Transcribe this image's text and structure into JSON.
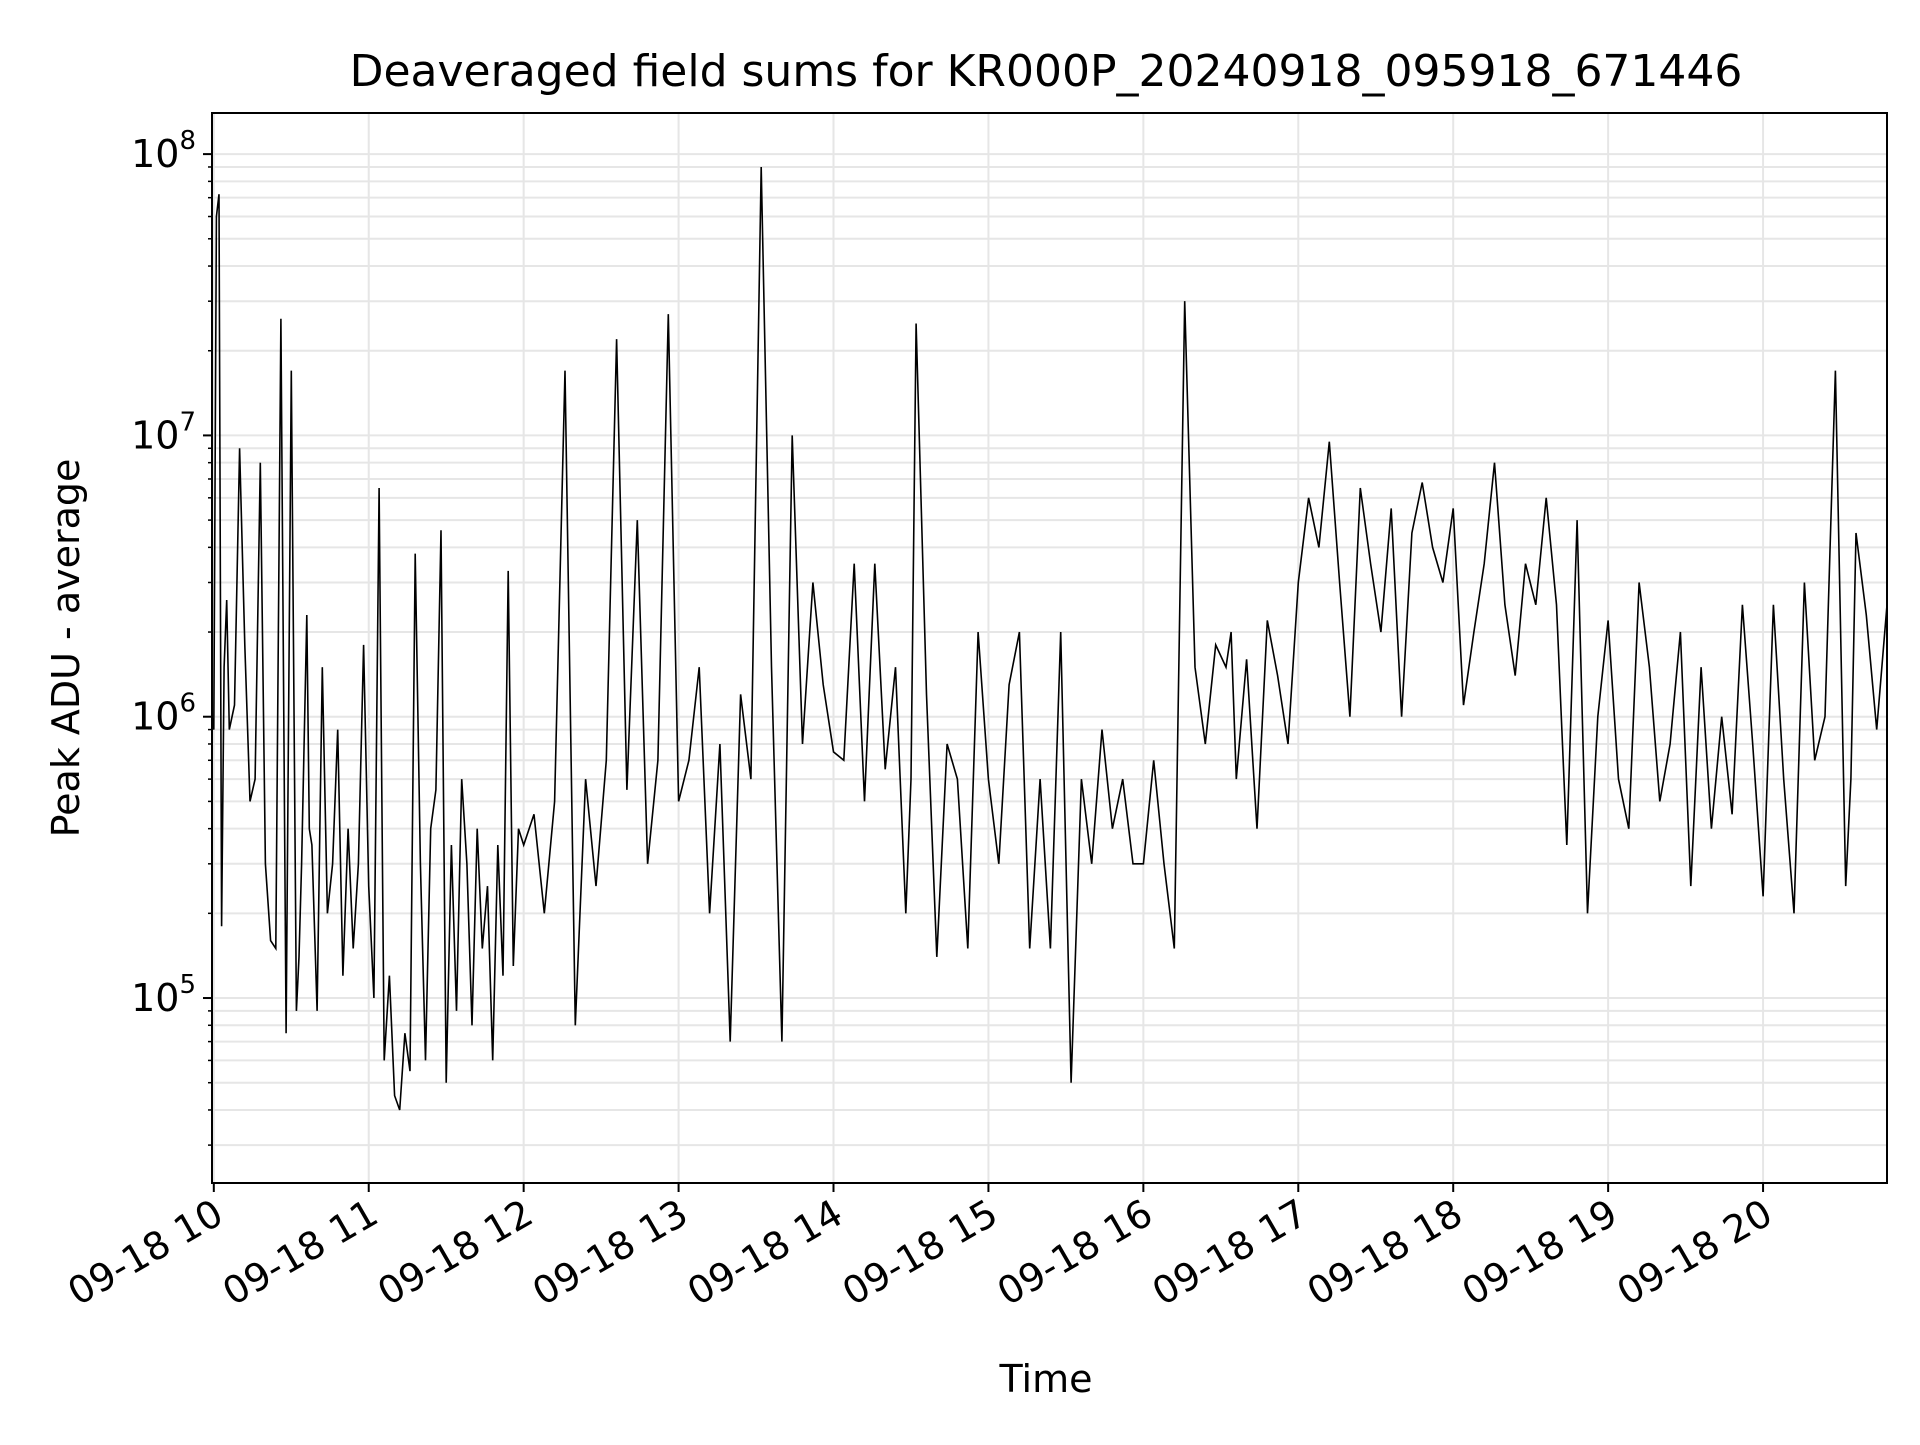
{
  "chart_data": {
    "type": "line",
    "title": "Deaveraged field sums for KR000P_20240918_095918_671446",
    "xlabel": "Time",
    "ylabel": "Peak ADU - average",
    "yscale": "log",
    "ylim": [
      22000,
      140000000
    ],
    "xlim": [
      "2024-09-18 09:59:18",
      "2024-09-18 20:48:00"
    ],
    "grid": true,
    "grid_minor": true,
    "line_color": "#000000",
    "grid_color": "#e6e6e6",
    "x_ticks": [
      {
        "value": "2024-09-18 10:00",
        "label": "09-18 10"
      },
      {
        "value": "2024-09-18 11:00",
        "label": "09-18 11"
      },
      {
        "value": "2024-09-18 12:00",
        "label": "09-18 12"
      },
      {
        "value": "2024-09-18 13:00",
        "label": "09-18 13"
      },
      {
        "value": "2024-09-18 14:00",
        "label": "09-18 14"
      },
      {
        "value": "2024-09-18 15:00",
        "label": "09-18 15"
      },
      {
        "value": "2024-09-18 16:00",
        "label": "09-18 16"
      },
      {
        "value": "2024-09-18 17:00",
        "label": "09-18 17"
      },
      {
        "value": "2024-09-18 18:00",
        "label": "09-18 18"
      },
      {
        "value": "2024-09-18 19:00",
        "label": "09-18 19"
      },
      {
        "value": "2024-09-18 20:00",
        "label": "09-18 20"
      }
    ],
    "y_ticks": [
      {
        "value": 100000,
        "base": "10",
        "exp": "5"
      },
      {
        "value": 1000000,
        "base": "10",
        "exp": "6"
      },
      {
        "value": 10000000,
        "base": "10",
        "exp": "7"
      },
      {
        "value": 100000000,
        "base": "10",
        "exp": "8"
      }
    ],
    "series": [
      {
        "x": [
          "2024-09-18 09:59:18",
          "2024-09-18 10:00",
          "2024-09-18 10:01",
          "2024-09-18 10:02",
          "2024-09-18 10:03",
          "2024-09-18 10:04",
          "2024-09-18 10:05",
          "2024-09-18 10:06",
          "2024-09-18 10:08",
          "2024-09-18 10:10",
          "2024-09-18 10:12",
          "2024-09-18 10:14",
          "2024-09-18 10:16",
          "2024-09-18 10:18",
          "2024-09-18 10:20",
          "2024-09-18 10:22",
          "2024-09-18 10:24",
          "2024-09-18 10:26",
          "2024-09-18 10:28",
          "2024-09-18 10:30",
          "2024-09-18 10:32",
          "2024-09-18 10:33",
          "2024-09-18 10:34",
          "2024-09-18 10:36",
          "2024-09-18 10:37",
          "2024-09-18 10:38",
          "2024-09-18 10:40",
          "2024-09-18 10:42",
          "2024-09-18 10:44",
          "2024-09-18 10:46",
          "2024-09-18 10:48",
          "2024-09-18 10:50",
          "2024-09-18 10:52",
          "2024-09-18 10:54",
          "2024-09-18 10:56",
          "2024-09-18 10:58",
          "2024-09-18 11:00",
          "2024-09-18 11:02",
          "2024-09-18 11:04",
          "2024-09-18 11:06",
          "2024-09-18 11:08",
          "2024-09-18 11:10",
          "2024-09-18 11:12",
          "2024-09-18 11:14",
          "2024-09-18 11:16",
          "2024-09-18 11:18",
          "2024-09-18 11:20",
          "2024-09-18 11:22",
          "2024-09-18 11:24",
          "2024-09-18 11:26",
          "2024-09-18 11:28",
          "2024-09-18 11:30",
          "2024-09-18 11:32",
          "2024-09-18 11:34",
          "2024-09-18 11:36",
          "2024-09-18 11:38",
          "2024-09-18 11:40",
          "2024-09-18 11:42",
          "2024-09-18 11:44",
          "2024-09-18 11:46",
          "2024-09-18 11:48",
          "2024-09-18 11:50",
          "2024-09-18 11:52",
          "2024-09-18 11:54",
          "2024-09-18 11:56",
          "2024-09-18 11:58",
          "2024-09-18 12:00",
          "2024-09-18 12:04",
          "2024-09-18 12:08",
          "2024-09-18 12:12",
          "2024-09-18 12:16",
          "2024-09-18 12:20",
          "2024-09-18 12:24",
          "2024-09-18 12:28",
          "2024-09-18 12:32",
          "2024-09-18 12:36",
          "2024-09-18 12:40",
          "2024-09-18 12:44",
          "2024-09-18 12:48",
          "2024-09-18 12:52",
          "2024-09-18 12:56",
          "2024-09-18 13:00",
          "2024-09-18 13:04",
          "2024-09-18 13:08",
          "2024-09-18 13:12",
          "2024-09-18 13:16",
          "2024-09-18 13:20",
          "2024-09-18 13:24",
          "2024-09-18 13:28",
          "2024-09-18 13:32",
          "2024-09-18 13:36",
          "2024-09-18 13:40",
          "2024-09-18 13:44",
          "2024-09-18 13:48",
          "2024-09-18 13:52",
          "2024-09-18 13:56",
          "2024-09-18 14:00",
          "2024-09-18 14:04",
          "2024-09-18 14:08",
          "2024-09-18 14:12",
          "2024-09-18 14:16",
          "2024-09-18 14:20",
          "2024-09-18 14:24",
          "2024-09-18 14:28",
          "2024-09-18 14:30",
          "2024-09-18 14:32",
          "2024-09-18 14:36",
          "2024-09-18 14:40",
          "2024-09-18 14:44",
          "2024-09-18 14:48",
          "2024-09-18 14:52",
          "2024-09-18 14:56",
          "2024-09-18 15:00",
          "2024-09-18 15:04",
          "2024-09-18 15:08",
          "2024-09-18 15:12",
          "2024-09-18 15:16",
          "2024-09-18 15:20",
          "2024-09-18 15:24",
          "2024-09-18 15:28",
          "2024-09-18 15:32",
          "2024-09-18 15:36",
          "2024-09-18 15:40",
          "2024-09-18 15:44",
          "2024-09-18 15:48",
          "2024-09-18 15:52",
          "2024-09-18 15:56",
          "2024-09-18 16:00",
          "2024-09-18 16:04",
          "2024-09-18 16:08",
          "2024-09-18 16:12",
          "2024-09-18 16:16",
          "2024-09-18 16:20",
          "2024-09-18 16:24",
          "2024-09-18 16:28",
          "2024-09-18 16:32",
          "2024-09-18 16:34",
          "2024-09-18 16:36",
          "2024-09-18 16:40",
          "2024-09-18 16:44",
          "2024-09-18 16:48",
          "2024-09-18 16:52",
          "2024-09-18 16:56",
          "2024-09-18 17:00",
          "2024-09-18 17:04",
          "2024-09-18 17:08",
          "2024-09-18 17:12",
          "2024-09-18 17:16",
          "2024-09-18 17:20",
          "2024-09-18 17:24",
          "2024-09-18 17:28",
          "2024-09-18 17:32",
          "2024-09-18 17:36",
          "2024-09-18 17:40",
          "2024-09-18 17:44",
          "2024-09-18 17:48",
          "2024-09-18 17:52",
          "2024-09-18 17:56",
          "2024-09-18 18:00",
          "2024-09-18 18:04",
          "2024-09-18 18:08",
          "2024-09-18 18:12",
          "2024-09-18 18:16",
          "2024-09-18 18:20",
          "2024-09-18 18:24",
          "2024-09-18 18:28",
          "2024-09-18 18:32",
          "2024-09-18 18:36",
          "2024-09-18 18:40",
          "2024-09-18 18:44",
          "2024-09-18 18:48",
          "2024-09-18 18:52",
          "2024-09-18 18:56",
          "2024-09-18 19:00",
          "2024-09-18 19:04",
          "2024-09-18 19:08",
          "2024-09-18 19:12",
          "2024-09-18 19:16",
          "2024-09-18 19:20",
          "2024-09-18 19:24",
          "2024-09-18 19:28",
          "2024-09-18 19:32",
          "2024-09-18 19:36",
          "2024-09-18 19:40",
          "2024-09-18 19:44",
          "2024-09-18 19:48",
          "2024-09-18 19:52",
          "2024-09-18 19:56",
          "2024-09-18 20:00",
          "2024-09-18 20:04",
          "2024-09-18 20:08",
          "2024-09-18 20:12",
          "2024-09-18 20:16",
          "2024-09-18 20:20",
          "2024-09-18 20:24",
          "2024-09-18 20:28",
          "2024-09-18 20:32",
          "2024-09-18 20:34",
          "2024-09-18 20:36",
          "2024-09-18 20:40",
          "2024-09-18 20:44",
          "2024-09-18 20:48"
        ],
        "y": [
          1000000,
          900000,
          60000000,
          72000000,
          180000,
          1500000,
          2600000,
          900000,
          1100000,
          9000000,
          1800000,
          500000,
          600000,
          8000000,
          300000,
          160000,
          150000,
          26000000,
          75000,
          17000000,
          90000,
          140000,
          300000,
          2300000,
          400000,
          350000,
          90000,
          1500000,
          200000,
          300000,
          900000,
          120000,
          400000,
          150000,
          300000,
          1800000,
          250000,
          100000,
          6500000,
          60000,
          120000,
          45000,
          40000,
          75000,
          55000,
          3800000,
          300000,
          60000,
          400000,
          550000,
          4600000,
          50000,
          350000,
          90000,
          600000,
          300000,
          80000,
          400000,
          150000,
          250000,
          60000,
          350000,
          120000,
          3300000,
          130000,
          400000,
          350000,
          450000,
          200000,
          500000,
          17000000,
          80000,
          600000,
          250000,
          700000,
          22000000,
          550000,
          5000000,
          300000,
          700000,
          27000000,
          500000,
          700000,
          1500000,
          200000,
          800000,
          70000,
          1200000,
          600000,
          90000000,
          1500000,
          70000,
          10000000,
          800000,
          3000000,
          1300000,
          750000,
          700000,
          3500000,
          500000,
          3500000,
          650000,
          1500000,
          200000,
          600000,
          25000000,
          1200000,
          140000,
          800000,
          600000,
          150000,
          2000000,
          600000,
          300000,
          1300000,
          2000000,
          150000,
          600000,
          150000,
          2000000,
          50000,
          600000,
          300000,
          900000,
          400000,
          600000,
          300000,
          300000,
          700000,
          300000,
          150000,
          30000000,
          1500000,
          800000,
          1800000,
          1500000,
          2000000,
          600000,
          1600000,
          400000,
          2200000,
          1400000,
          800000,
          3000000,
          6000000,
          4000000,
          9500000,
          3000000,
          1000000,
          6500000,
          3500000,
          2000000,
          5500000,
          1000000,
          4500000,
          6800000,
          4000000,
          3000000,
          5500000,
          1100000,
          2000000,
          3500000,
          8000000,
          2500000,
          1400000,
          3500000,
          2500000,
          6000000,
          2500000,
          350000,
          5000000,
          200000,
          1000000,
          2200000,
          600000,
          400000,
          3000000,
          1500000,
          500000,
          800000,
          2000000,
          250000,
          1500000,
          400000,
          1000000,
          450000,
          2500000,
          800000,
          230000,
          2500000,
          600000,
          200000,
          3000000,
          700000,
          1000000,
          17000000,
          250000,
          600000,
          4500000,
          2300000,
          900000,
          2500000
        ]
      }
    ]
  }
}
